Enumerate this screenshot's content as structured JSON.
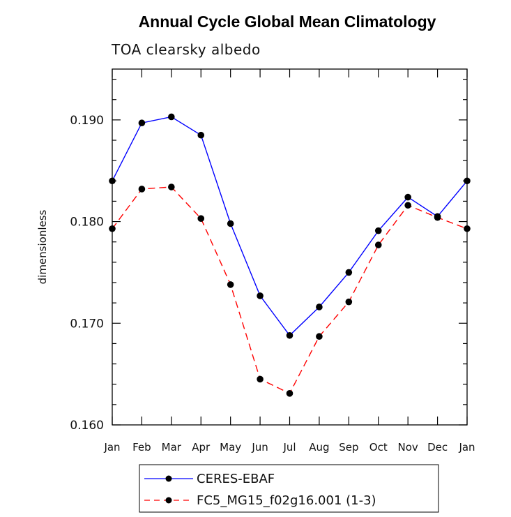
{
  "chart_data": {
    "type": "line",
    "title": "Annual Cycle Global Mean Climatology",
    "subtitle": "TOA clearsky albedo",
    "ylabel": "dimensionless",
    "xlabel": "",
    "categories": [
      "Jan",
      "Feb",
      "Mar",
      "Apr",
      "May",
      "Jun",
      "Jul",
      "Aug",
      "Sep",
      "Oct",
      "Nov",
      "Dec",
      "Jan"
    ],
    "ylim": [
      0.16,
      0.195
    ],
    "yticks": [
      0.16,
      0.17,
      0.18,
      0.19
    ],
    "ytick_labels": [
      "0.160",
      "0.170",
      "0.180",
      "0.190"
    ],
    "legend_position": "bottom-center",
    "series": [
      {
        "name": "CERES-EBAF",
        "color": "#0000ff",
        "dash": "solid",
        "values": [
          0.184,
          0.1897,
          0.1903,
          0.1885,
          0.1798,
          0.1727,
          0.1688,
          0.1716,
          0.175,
          0.1791,
          0.1824,
          0.1805,
          0.184
        ]
      },
      {
        "name": "FC5_MG15_f02g16.001 (1-3)",
        "color": "#ff0000",
        "dash": "dashed",
        "values": [
          0.1793,
          0.1832,
          0.1834,
          0.1803,
          0.1738,
          0.1645,
          0.1631,
          0.1687,
          0.1721,
          0.1777,
          0.1816,
          0.1804,
          0.1793
        ]
      }
    ]
  }
}
